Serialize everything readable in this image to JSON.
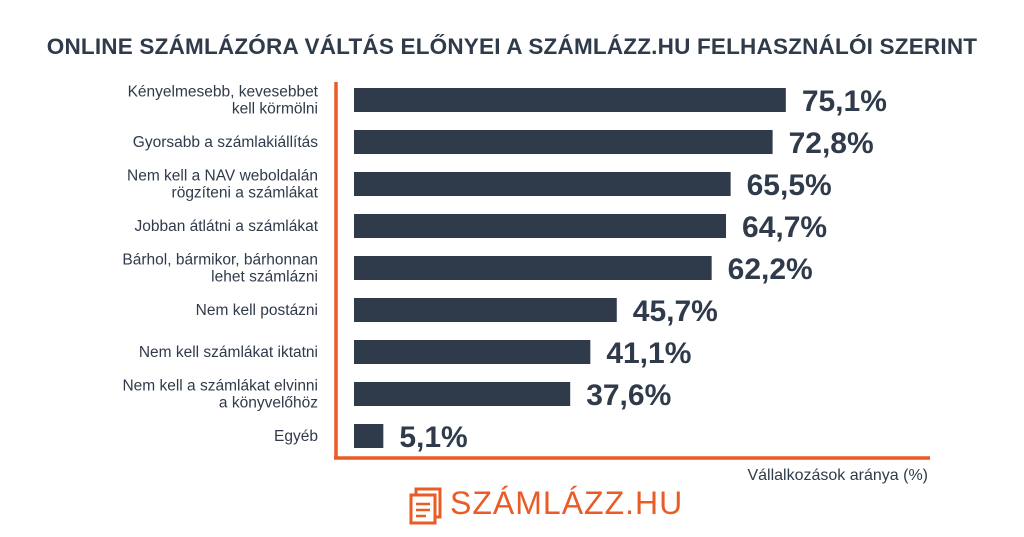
{
  "colors": {
    "bar": "#2f3a4a",
    "axis": "#ea5b25",
    "brand": "#ea5b25",
    "text": "#2f3a4a"
  },
  "logo": {
    "text": "SZÁMLÁZZ.HU",
    "icon": "document-stack-icon"
  },
  "chart_data": {
    "type": "bar",
    "orientation": "horizontal",
    "title": "ONLINE SZÁMLÁZÓRA VÁLTÁS ELŐNYEI A SZÁMLÁZZ.HU FELHASZNÁLÓI SZERINT",
    "xlabel": "Vállalkozások aránya (%)",
    "ylabel": "",
    "xlim": [
      0,
      100
    ],
    "grid": false,
    "categories": [
      [
        "Kényelmesebb, kevesebbet",
        "kell körmölni"
      ],
      [
        "Gyorsabb a számlakiállítás"
      ],
      [
        "Nem kell a NAV weboldalán",
        "rögzíteni a számlákat"
      ],
      [
        "Jobban átlátni a számlákat"
      ],
      [
        "Bárhol, bármikor, bárhonnan",
        "lehet számlázni"
      ],
      [
        "Nem kell postázni"
      ],
      [
        "Nem kell számlákat iktatni"
      ],
      [
        "Nem kell a számlákat elvinni",
        "a könyvelőhöz"
      ],
      [
        "Egyéb"
      ]
    ],
    "values": [
      75.1,
      72.8,
      65.5,
      64.7,
      62.2,
      45.7,
      41.1,
      37.6,
      5.1
    ],
    "value_labels": [
      "75,1%",
      "72,8%",
      "65,5%",
      "64,7%",
      "62,2%",
      "45,7%",
      "41,1%",
      "37,6%",
      "5,1%"
    ]
  }
}
